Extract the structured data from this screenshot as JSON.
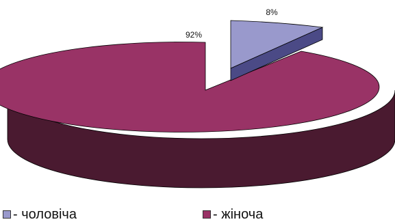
{
  "chart_data": {
    "type": "pie",
    "style": "3d-exploded",
    "categories": [
      "- чоловіча",
      "- жіноча"
    ],
    "values": [
      8,
      92
    ],
    "data_labels": [
      "8%",
      "92%"
    ],
    "colors": {
      "male_top": "#9999cc",
      "male_side": "#4b4a86",
      "female_top": "#993366",
      "female_side": "#4a1a30",
      "outline": "#000000"
    },
    "legend_position": "bottom"
  }
}
